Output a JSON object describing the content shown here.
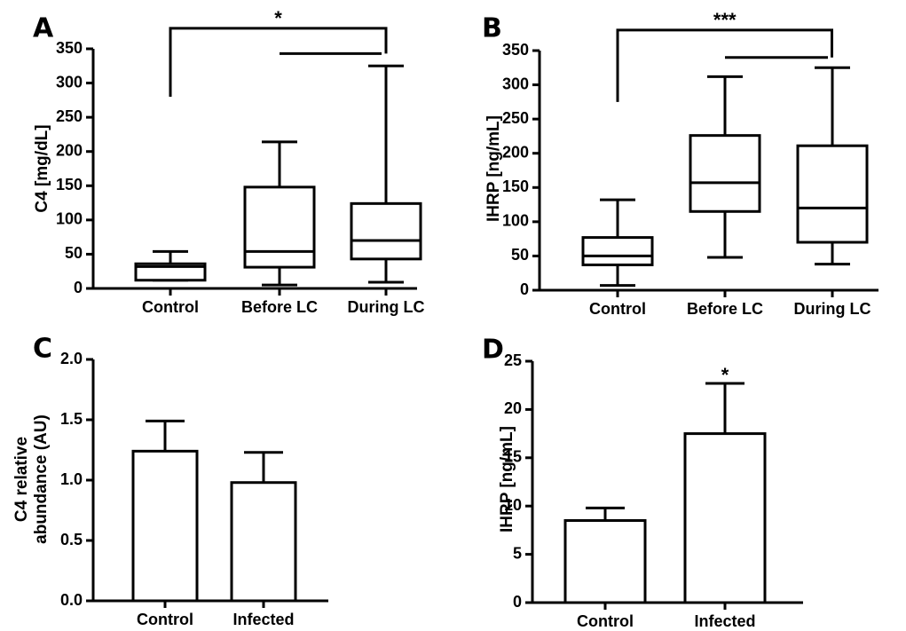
{
  "chart_data": [
    {
      "panel": "A",
      "type": "box",
      "ylabel": "C4 [mg/dL]",
      "ylim": [
        0,
        350
      ],
      "yticks": [
        0,
        50,
        100,
        150,
        200,
        250,
        300,
        350
      ],
      "categories": [
        "Control",
        "Before LC",
        "During LC"
      ],
      "boxes": [
        {
          "min": 12,
          "q1": 12,
          "median": 32,
          "q3": 36,
          "max": 54
        },
        {
          "min": 5,
          "q1": 31,
          "median": 54,
          "q3": 148,
          "max": 214
        },
        {
          "min": 9,
          "q1": 43,
          "median": 70,
          "q3": 124,
          "max": 325
        }
      ],
      "significance": {
        "label": "*",
        "from": 0,
        "to": [
          1,
          2
        ],
        "y": 380,
        "group_y": 343,
        "start_y": 280
      }
    },
    {
      "panel": "B",
      "type": "box",
      "ylabel": "IHRP [ng/mL]",
      "ylim": [
        0,
        350
      ],
      "yticks": [
        0,
        50,
        100,
        150,
        200,
        250,
        300,
        350
      ],
      "categories": [
        "Control",
        "Before LC",
        "During LC"
      ],
      "boxes": [
        {
          "min": 7,
          "q1": 37,
          "median": 50,
          "q3": 77,
          "max": 132
        },
        {
          "min": 48,
          "q1": 115,
          "median": 157,
          "q3": 226,
          "max": 312
        },
        {
          "min": 38,
          "q1": 70,
          "median": 120,
          "q3": 211,
          "max": 325
        }
      ],
      "significance": {
        "label": "***",
        "from": 0,
        "to": [
          1,
          2
        ],
        "y": 380,
        "group_y": 340,
        "start_y": 275
      }
    },
    {
      "panel": "C",
      "type": "bar",
      "ylabel_lines": [
        "C4 relative",
        "abundance (AU)"
      ],
      "ylim": [
        0,
        2.0
      ],
      "yticks": [
        "0.0",
        "0.5",
        "1.0",
        "1.5",
        "2.0"
      ],
      "categories": [
        "Control",
        "Infected"
      ],
      "values": [
        1.24,
        0.98
      ],
      "errors": [
        0.25,
        0.25
      ]
    },
    {
      "panel": "D",
      "type": "bar",
      "ylabel": "IHRP [ng/mL]",
      "ylim": [
        0,
        25
      ],
      "yticks": [
        "0",
        "5",
        "10",
        "15",
        "20",
        "25"
      ],
      "categories": [
        "Control",
        "Infected"
      ],
      "values": [
        8.5,
        17.5
      ],
      "errors": [
        1.3,
        5.2
      ],
      "significance": [
        {
          "label": "*",
          "category": 1
        }
      ]
    }
  ]
}
